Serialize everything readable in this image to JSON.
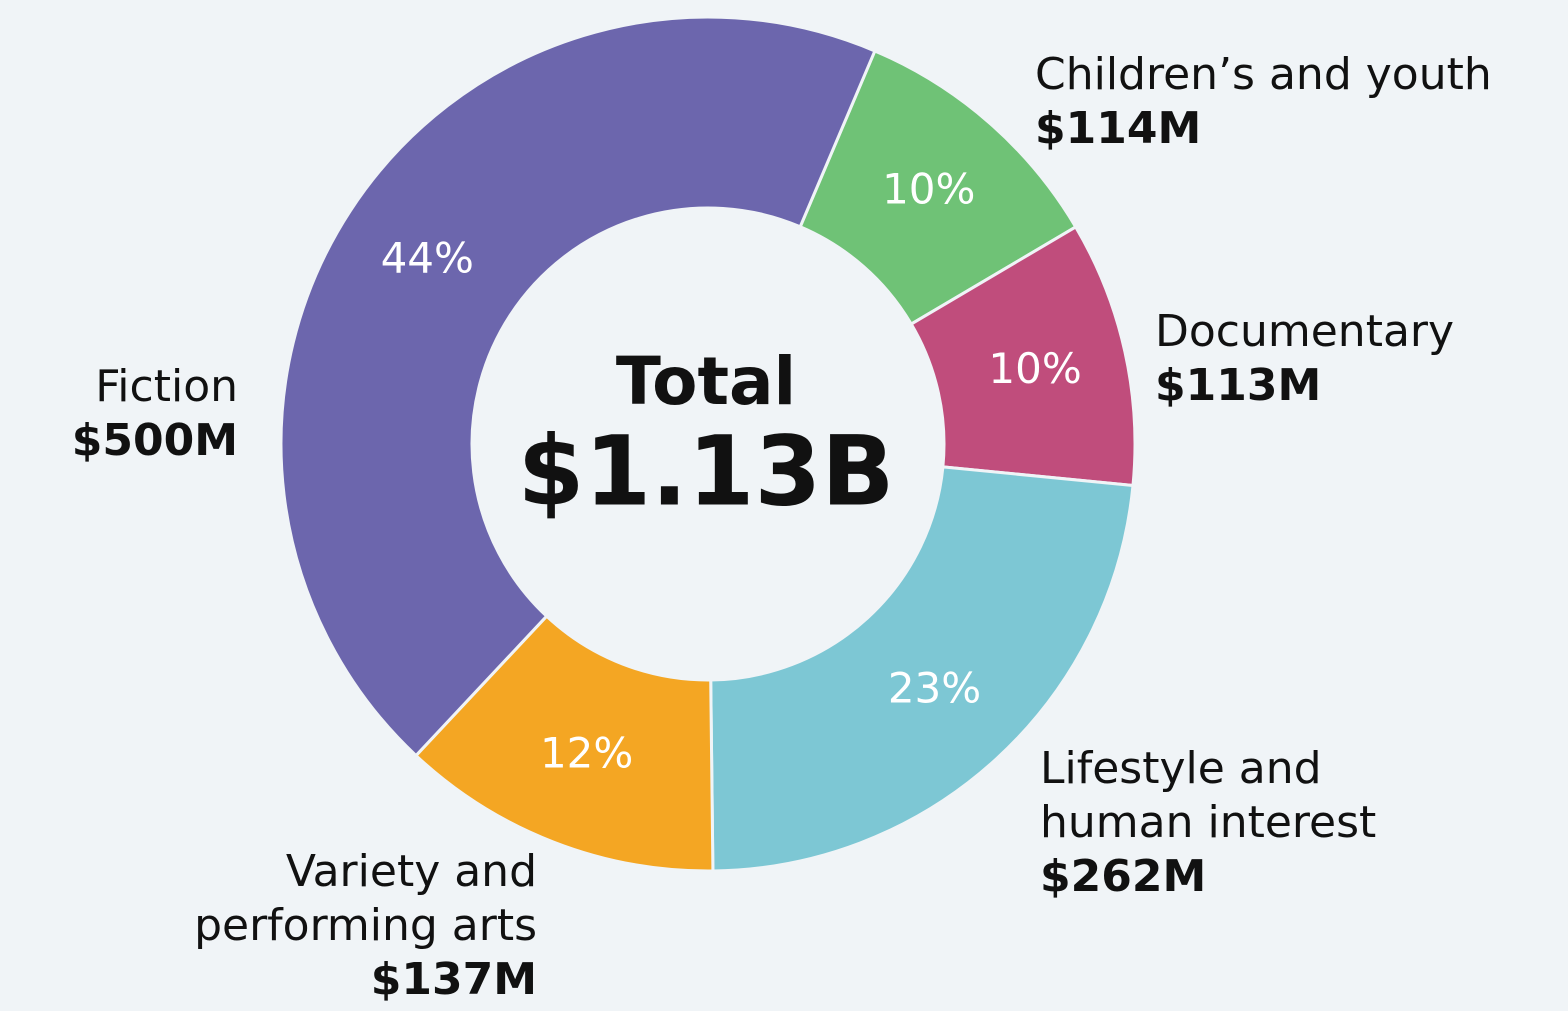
{
  "chart_data": {
    "type": "donut",
    "categories": [
      "Children’s and youth",
      "Documentary",
      "Lifestyle and human interest",
      "Variety and performing arts",
      "Fiction"
    ],
    "values": [
      114,
      113,
      262,
      137,
      500
    ],
    "value_labels": [
      "$114M",
      "$113M",
      "$262M",
      "$137M",
      "$500M"
    ],
    "percent_labels": [
      "10%",
      "10%",
      "23%",
      "12%",
      "44%"
    ],
    "colors": [
      "#6fc276",
      "#c04d7c",
      "#7dc7d4",
      "#f4a623",
      "#6c66ad"
    ],
    "center_title": "Total",
    "center_value": "$1.13B"
  }
}
